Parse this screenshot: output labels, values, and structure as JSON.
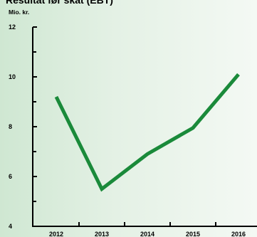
{
  "chart_data": {
    "type": "line",
    "title": "Resultat før skat (EBT)",
    "ylabel": "Mio. kr.",
    "xlabel": "",
    "categories": [
      "2012",
      "2013",
      "2014",
      "2015",
      "2016"
    ],
    "series": [
      {
        "values": [
          9.2,
          5.5,
          6.9,
          7.95,
          10.1
        ]
      }
    ],
    "ylim": [
      4,
      12
    ],
    "yticks": [
      4,
      6,
      8,
      10,
      12
    ],
    "grid": false,
    "legend": "none",
    "colors": {
      "line": "#1a8a3a",
      "axis": "#000000"
    }
  }
}
